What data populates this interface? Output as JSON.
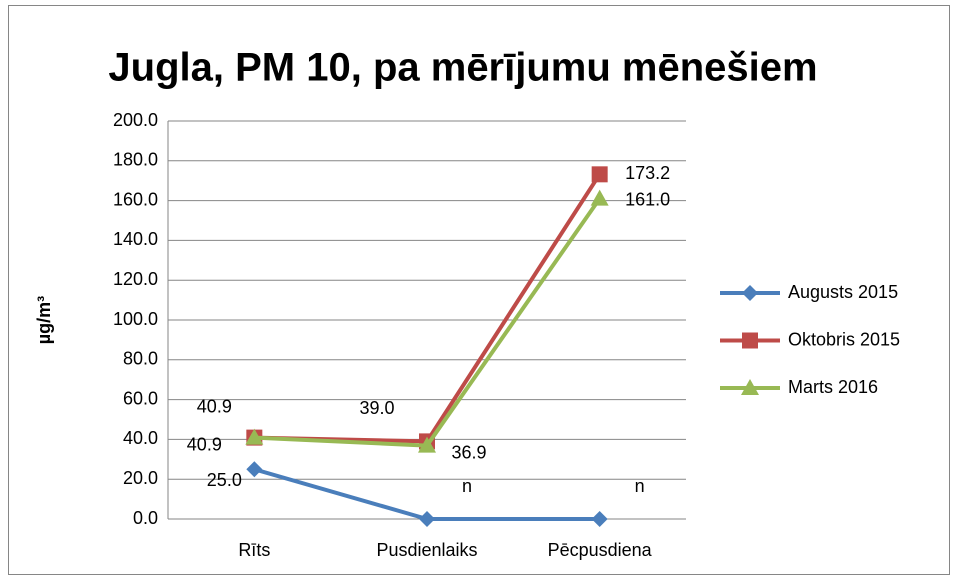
{
  "chart_data": {
    "type": "line",
    "title": "Jugla, PM 10, pa mērījumu mēnešiem",
    "y_label": "µg/m³",
    "categories": [
      "Rīts",
      "Pusdienlaiks",
      "Pēcpusdiena"
    ],
    "series": [
      {
        "name": "Augusts 2015",
        "color": "#4a7ebb",
        "marker": "diamond",
        "values": [
          25.0,
          0,
          0
        ],
        "value_labels": [
          "25.0",
          "n",
          "n"
        ]
      },
      {
        "name": "Oktobris 2015",
        "color": "#be4b48",
        "marker": "square",
        "values": [
          40.9,
          39.0,
          173.2
        ],
        "value_labels": [
          "40.9",
          "39.0",
          "173.2"
        ]
      },
      {
        "name": "Marts 2016",
        "color": "#98b954",
        "marker": "triangle",
        "values": [
          40.9,
          36.9,
          161.0
        ],
        "value_labels": [
          "40.9",
          "36.9",
          "161.0"
        ]
      }
    ],
    "ylim": [
      0,
      200
    ],
    "yticks": [
      {
        "value": 0,
        "label": "0.0"
      },
      {
        "value": 20,
        "label": "20.0"
      },
      {
        "value": 40,
        "label": "40.0"
      },
      {
        "value": 60,
        "label": "60.0"
      },
      {
        "value": 80,
        "label": "80.0"
      },
      {
        "value": 100,
        "label": "100.0"
      },
      {
        "value": 120,
        "label": "120.0"
      },
      {
        "value": 140,
        "label": "140.0"
      },
      {
        "value": 160,
        "label": "160.0"
      },
      {
        "value": 180,
        "label": "180.0"
      },
      {
        "value": 200,
        "label": "200.0"
      }
    ],
    "grid": true,
    "legend": "right"
  }
}
